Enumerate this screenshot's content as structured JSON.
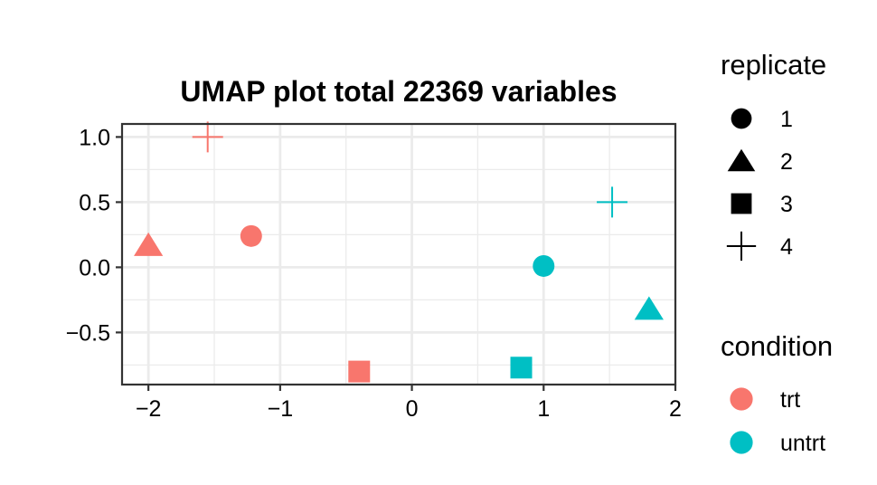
{
  "chart_data": {
    "type": "scatter",
    "title": "UMAP plot total 22369 variables",
    "xlabel": "",
    "ylabel": "",
    "xlim": [
      -2.2,
      2.0
    ],
    "ylim": [
      -0.9,
      1.1
    ],
    "x_ticks": [
      -2,
      -1,
      0,
      1,
      2
    ],
    "x_tick_labels": [
      "−2",
      "−1",
      "0",
      "1",
      "2"
    ],
    "y_ticks": [
      -0.5,
      0.0,
      0.5,
      1.0
    ],
    "y_tick_labels": [
      "−0.5",
      "0.0",
      "0.5",
      "1.0"
    ],
    "grid": true,
    "legend_placement": "right",
    "legends": {
      "replicate": {
        "title": "replicate",
        "items": [
          {
            "label": "1",
            "shape": "circle"
          },
          {
            "label": "2",
            "shape": "triangle"
          },
          {
            "label": "3",
            "shape": "square"
          },
          {
            "label": "4",
            "shape": "plus"
          }
        ]
      },
      "condition": {
        "title": "condition",
        "items": [
          {
            "label": "trt",
            "color": "#F8766D"
          },
          {
            "label": "untrt",
            "color": "#00BFC4"
          }
        ]
      }
    },
    "points": [
      {
        "x": -1.55,
        "y": 1.0,
        "replicate": "4",
        "condition": "trt"
      },
      {
        "x": -2.0,
        "y": 0.17,
        "replicate": "2",
        "condition": "trt"
      },
      {
        "x": -1.22,
        "y": 0.24,
        "replicate": "1",
        "condition": "trt"
      },
      {
        "x": -0.4,
        "y": -0.8,
        "replicate": "3",
        "condition": "trt"
      },
      {
        "x": 1.52,
        "y": 0.5,
        "replicate": "4",
        "condition": "untrt"
      },
      {
        "x": 1.0,
        "y": 0.01,
        "replicate": "1",
        "condition": "untrt"
      },
      {
        "x": 1.8,
        "y": -0.32,
        "replicate": "2",
        "condition": "untrt"
      },
      {
        "x": 0.83,
        "y": -0.77,
        "replicate": "3",
        "condition": "untrt"
      }
    ]
  }
}
